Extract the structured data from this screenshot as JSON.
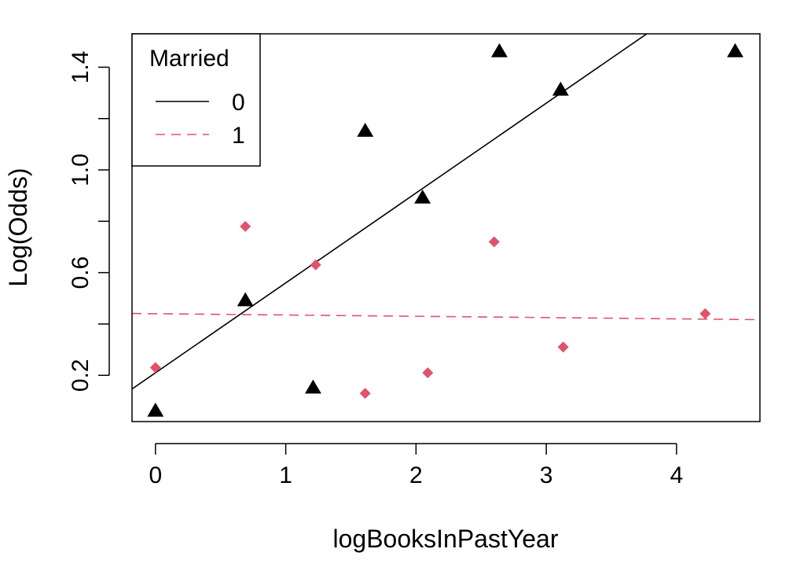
{
  "chart_data": {
    "type": "scatter",
    "xlabel": "logBooksInPastYear",
    "ylabel": "Log(Odds)",
    "xlim": [
      -0.18,
      4.64
    ],
    "ylim": [
      0.02,
      1.53
    ],
    "x_ticks": [
      0,
      1,
      2,
      3,
      4
    ],
    "y_ticks": [
      0.2,
      0.4,
      0.6,
      0.8,
      1.0,
      1.2,
      1.4
    ],
    "y_tick_labels": [
      "0.2",
      "",
      "0.6",
      "",
      "1.0",
      "",
      "1.4"
    ],
    "grid": false,
    "legend": {
      "title": "Married",
      "position": "top-left",
      "entries": [
        {
          "label": "0",
          "color": "#000000",
          "line": "solid",
          "marker": "triangle"
        },
        {
          "label": "1",
          "color": "#DF536B",
          "line": "dashed",
          "marker": "diamond"
        }
      ]
    },
    "series": [
      {
        "name": "0",
        "color": "#000000",
        "marker": "triangle",
        "points": [
          {
            "x": 0.0,
            "y": 0.06
          },
          {
            "x": 0.69,
            "y": 0.49
          },
          {
            "x": 1.21,
            "y": 0.15
          },
          {
            "x": 1.61,
            "y": 1.15
          },
          {
            "x": 2.05,
            "y": 0.89
          },
          {
            "x": 2.64,
            "y": 1.46
          },
          {
            "x": 3.11,
            "y": 1.31
          },
          {
            "x": 4.45,
            "y": 1.46
          }
        ],
        "fit": {
          "intercept": 0.21,
          "slope": 0.35,
          "style": "solid"
        }
      },
      {
        "name": "1",
        "color": "#DF536B",
        "marker": "diamond",
        "points": [
          {
            "x": 0.0,
            "y": 0.23
          },
          {
            "x": 0.69,
            "y": 0.78
          },
          {
            "x": 1.23,
            "y": 0.63
          },
          {
            "x": 1.61,
            "y": 0.13
          },
          {
            "x": 2.09,
            "y": 0.21
          },
          {
            "x": 2.6,
            "y": 0.72
          },
          {
            "x": 3.13,
            "y": 0.31
          },
          {
            "x": 4.22,
            "y": 0.44
          }
        ],
        "fit": {
          "intercept": 0.44,
          "slope": -0.005,
          "style": "dashed"
        }
      }
    ]
  }
}
